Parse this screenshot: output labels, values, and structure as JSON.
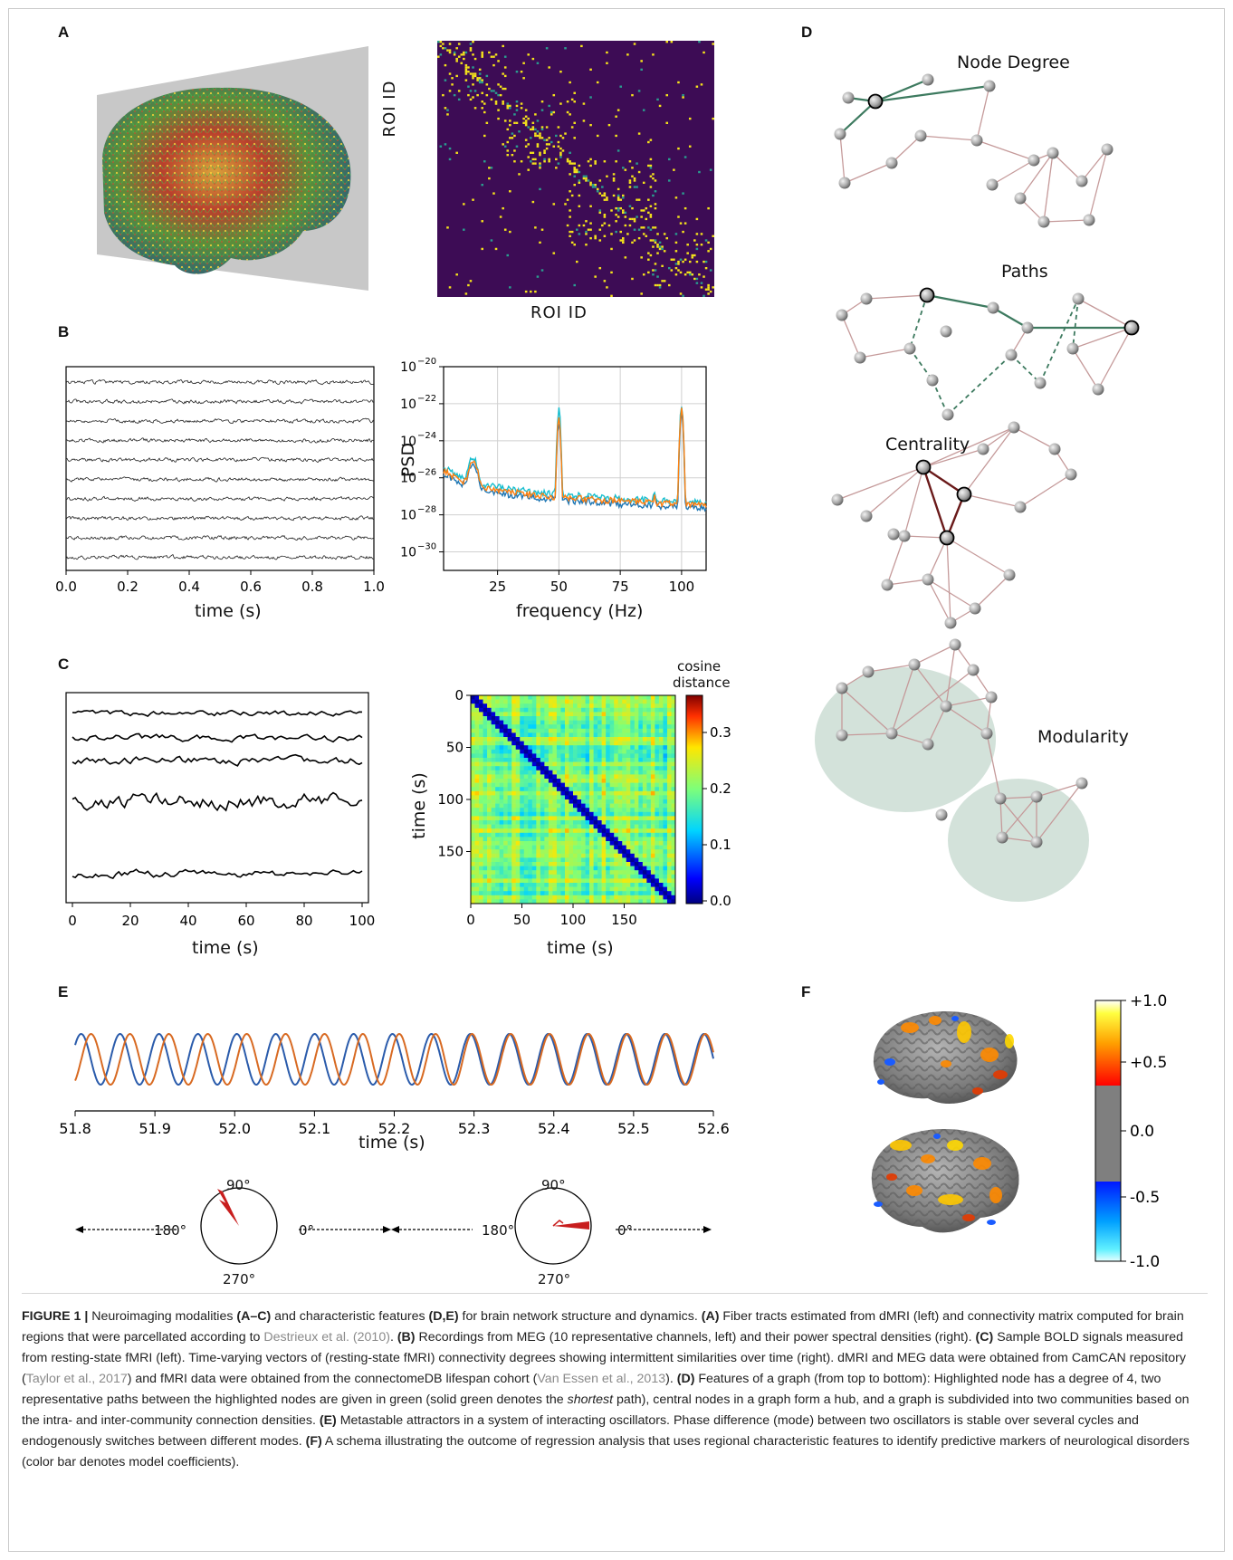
{
  "panels": {
    "A": {
      "label": "A",
      "matrix_ylabel": "ROI ID",
      "matrix_xlabel": "ROI ID"
    },
    "B": {
      "label": "B",
      "meg_xlabel": "time (s)",
      "meg_xticks": [
        "0.0",
        "0.2",
        "0.4",
        "0.6",
        "0.8",
        "1.0"
      ],
      "meg_channel_count": 10,
      "psd_xlabel": "frequency (Hz)",
      "psd_ylabel": "PSD",
      "psd_xticks": [
        "25",
        "50",
        "75",
        "100"
      ],
      "psd_yticks": [
        "10",
        "10",
        "10",
        "10",
        "10",
        "10"
      ],
      "psd_yexps": [
        "−20",
        "−22",
        "−24",
        "−26",
        "−28",
        "−30"
      ]
    },
    "C": {
      "label": "C",
      "bold_xlabel": "time (s)",
      "bold_xticks": [
        "0",
        "20",
        "40",
        "60",
        "80",
        "100"
      ],
      "heat_xlabel": "time (s)",
      "heat_ylabel": "time (s)",
      "heat_xticks": [
        "0",
        "50",
        "100",
        "150"
      ],
      "heat_yticks": [
        "0",
        "50",
        "100",
        "150"
      ],
      "colorbar_title_1": "cosine",
      "colorbar_title_2": "distance",
      "colorbar_ticks": [
        "0.3",
        "0.2",
        "0.1",
        "0.0"
      ]
    },
    "D": {
      "label": "D",
      "titles": [
        "Node Degree",
        "Paths",
        "Centrality",
        "Modularity"
      ]
    },
    "E": {
      "label": "E",
      "xlabel": "time (s)",
      "xticks": [
        "51.8",
        "51.9",
        "52.0",
        "52.1",
        "52.2",
        "52.3",
        "52.4",
        "52.5",
        "52.6"
      ],
      "dial_labels": [
        "90°",
        "180°",
        "0°",
        "270°"
      ],
      "colors": {
        "osc1": "#2a5bab",
        "osc2": "#d86a22"
      }
    },
    "F": {
      "label": "F",
      "colorbar_ticks": [
        "+1.0",
        "+0.5",
        "0.0",
        "-0.5",
        "-1.0"
      ]
    }
  },
  "chart_data": [
    {
      "type": "line",
      "id": "B-psd",
      "xlabel": "frequency (Hz)",
      "ylabel": "PSD",
      "yscale": "log",
      "ylim": [
        1e-31,
        1e-20
      ],
      "xlim": [
        3,
        110
      ],
      "x": [
        5,
        10,
        15,
        20,
        25,
        30,
        35,
        40,
        45,
        50,
        55,
        60,
        65,
        70,
        75,
        80,
        85,
        90,
        95,
        100,
        105,
        110
      ],
      "series": [
        {
          "color": "#1f77b4",
          "values": [
            5e-27,
            4e-27,
            8e-26,
            2e-27,
            1.5e-27,
            1.2e-27,
            1e-27,
            9e-28,
            8e-28,
            1e-23,
            6e-28,
            5e-28,
            4e-28,
            3.5e-28,
            3e-28,
            3e-28,
            2.8e-28,
            2.5e-28,
            2.4e-28,
            3e-23,
            2e-28,
            2e-28
          ]
        },
        {
          "color": "#17becf",
          "values": [
            1e-26,
            8e-27,
            1.5e-25,
            4e-27,
            3e-27,
            2.5e-27,
            2e-27,
            1.8e-27,
            1.5e-27,
            5e-23,
            1.2e-27,
            1e-27,
            8e-28,
            7e-28,
            6e-28,
            6e-28,
            5.5e-28,
            5e-28,
            4.5e-28,
            8e-23,
            4e-28,
            4e-28
          ]
        },
        {
          "color": "#ff7f0e",
          "values": [
            8e-27,
            6e-27,
            1.2e-25,
            3e-27,
            2.5e-27,
            2e-27,
            1.7e-27,
            1.5e-27,
            1.3e-27,
            2e-23,
            1e-27,
            9e-28,
            7e-28,
            6e-28,
            5e-28,
            5e-28,
            4.5e-28,
            4e-28,
            3.8e-28,
            5e-23,
            3.5e-28,
            3.5e-28
          ]
        }
      ]
    },
    {
      "type": "line",
      "id": "E-oscillators",
      "xlabel": "time (s)",
      "xlim": [
        51.8,
        52.6
      ],
      "series": [
        {
          "color": "#2a5bab"
        },
        {
          "color": "#d86a22"
        }
      ]
    }
  ],
  "caption": {
    "label": "FIGURE 1 |",
    "p1": " Neuroimaging modalities ",
    "b1": "(A–C)",
    "p2": " and characteristic features ",
    "b2": "(D,E)",
    "p3": " for brain network structure and dynamics. ",
    "b3": "(A)",
    "p4": " Fiber tracts estimated from dMRI (left) and connectivity matrix computed for brain regions that were parcellated according to ",
    "c1": "Destrieux et al. (2010)",
    "p5": ". ",
    "b4": "(B)",
    "p6": " Recordings from MEG (10 representative channels, left) and their power spectral densities (right). ",
    "b5": "(C)",
    "p7": " Sample BOLD signals measured from resting-state fMRI (left). Time-varying vectors of (resting-state fMRI) connectivity degrees showing intermittent similarities over time (right). dMRI and MEG data were obtained from CamCAN repository (",
    "c2": "Taylor et al., 2017",
    "p8": ") and fMRI data were obtained from the connectomeDB lifespan cohort (",
    "c3": "Van Essen et al., 2013",
    "p9": "). ",
    "b6": "(D)",
    "p10": " Features of a graph (from top to bottom): Highlighted node has a degree of 4, two representative paths between the highlighted nodes are given in green (solid green denotes the ",
    "i1": "shortest",
    "p11": " path), central nodes in a graph form a hub, and a graph is subdivided into two communities based on the intra- and inter-community connection densities. ",
    "b7": "(E)",
    "p12": " Metastable attractors in a system of interacting oscillators. Phase difference (mode) between two oscillators is stable over several cycles and endogenously switches between different modes. ",
    "b8": "(F)",
    "p13": " A schema illustrating the outcome of regression analysis that uses regional characteristic features to identify predictive markers of neurological disorders (color bar denotes model coefficients)."
  }
}
